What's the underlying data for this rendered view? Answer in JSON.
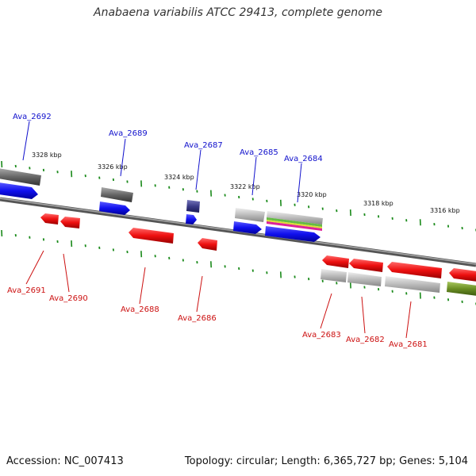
{
  "title": "Anabaena variabilis ATCC 29413, complete genome",
  "accession_text": "Accession: NC_007413",
  "summary_text": "Topology: circular; Length: 6,365,727 bp; Genes: 5,104",
  "colors": {
    "backbone": "#7f7f7f",
    "forward_label": "#1010cc",
    "reverse_label": "#cc1010",
    "tick": "#1a8a1a",
    "cds_forward": "#1010ee",
    "cds_reverse": "#ee1010",
    "feature_grey": "#666666",
    "feature_light": "#bbbbbb",
    "feature_olive": "#6b8e23"
  },
  "scale_labels": [
    "3328 kbp",
    "3326 kbp",
    "3324 kbp",
    "3322 kbp",
    "3320 kbp",
    "3318 kbp",
    "3316 kbp"
  ],
  "forward_gene_labels": [
    "Ava_2692",
    "Ava_2689",
    "Ava_2687",
    "Ava_2685",
    "Ava_2684"
  ],
  "reverse_gene_labels": [
    "Ava_2691",
    "Ava_2690",
    "Ava_2688",
    "Ava_2686",
    "Ava_2683",
    "Ava_2682",
    "Ava_2681"
  ]
}
